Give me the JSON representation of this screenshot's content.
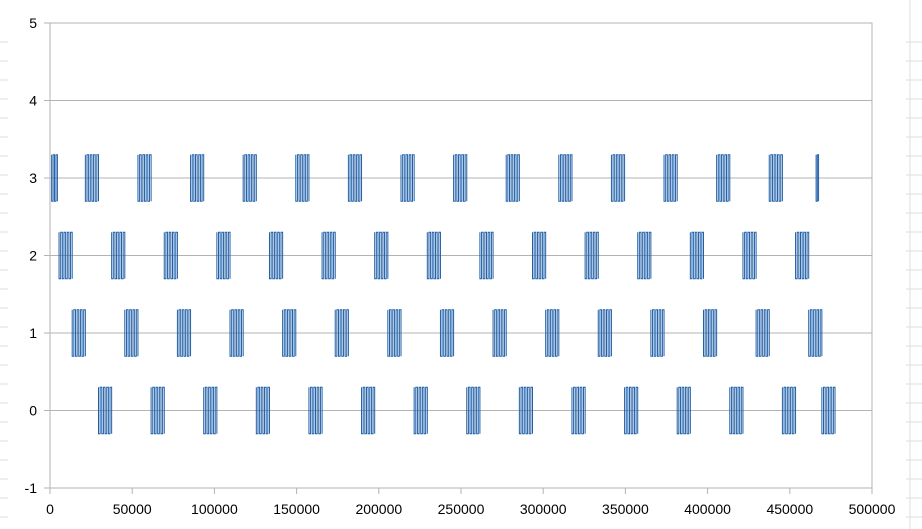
{
  "chart_data": {
    "type": "line",
    "title": "",
    "xlabel": "",
    "ylabel": "",
    "xlim": [
      0,
      500000
    ],
    "ylim": [
      -1,
      5
    ],
    "grid": true,
    "legend": "none",
    "x_ticks": [
      "0",
      "50000",
      "100000",
      "150000",
      "200000",
      "250000",
      "300000",
      "350000",
      "400000",
      "450000",
      "500000"
    ],
    "y_ticks": [
      "5",
      "4",
      "3",
      "2",
      "1",
      "0",
      "-1"
    ],
    "series": [
      {
        "level": 3,
        "amplitude": 0.3,
        "burst_start_x": [
          1000,
          21500,
          53500,
          85500,
          117500,
          149500,
          181500,
          213500,
          245500,
          277500,
          309500,
          341500,
          373500,
          405500,
          437500,
          466000
        ],
        "burst_end_x": [
          4500,
          29500,
          61500,
          93500,
          125500,
          157500,
          189500,
          221500,
          253500,
          285500,
          317500,
          349500,
          381500,
          413500,
          445500,
          467500
        ]
      },
      {
        "level": 2,
        "amplitude": 0.3,
        "burst_start_x": [
          5500,
          37500,
          69500,
          101500,
          133500,
          165500,
          197500,
          229500,
          261500,
          293500,
          325500,
          357500,
          389500,
          421500,
          453500
        ],
        "burst_end_x": [
          13500,
          45500,
          77500,
          109500,
          141500,
          173500,
          205500,
          237500,
          269500,
          301500,
          333500,
          365500,
          397500,
          429500,
          461500
        ]
      },
      {
        "level": 1,
        "amplitude": 0.3,
        "burst_start_x": [
          13500,
          45500,
          77500,
          109500,
          141500,
          173500,
          205500,
          237500,
          269500,
          301500,
          333500,
          365500,
          397500,
          429500,
          461500
        ],
        "burst_end_x": [
          21500,
          53500,
          85500,
          117500,
          149500,
          181500,
          213500,
          245500,
          277500,
          309500,
          341500,
          373500,
          405500,
          437500,
          469500
        ]
      },
      {
        "level": 0,
        "amplitude": 0.3,
        "burst_start_x": [
          29500,
          61500,
          93500,
          125500,
          157500,
          189500,
          221500,
          253500,
          285500,
          317500,
          349500,
          381500,
          413500,
          445500,
          469500
        ],
        "burst_end_x": [
          37500,
          69500,
          101500,
          133500,
          165500,
          197500,
          229500,
          261500,
          293500,
          325500,
          357500,
          389500,
          421500,
          453500,
          477500
        ]
      }
    ]
  },
  "colors": {
    "series": "#1f5fa8",
    "grid": "#b3b3b3",
    "axis": "#b3b3b3",
    "background": "#ffffff",
    "sheet_grid": "#dddddd"
  }
}
